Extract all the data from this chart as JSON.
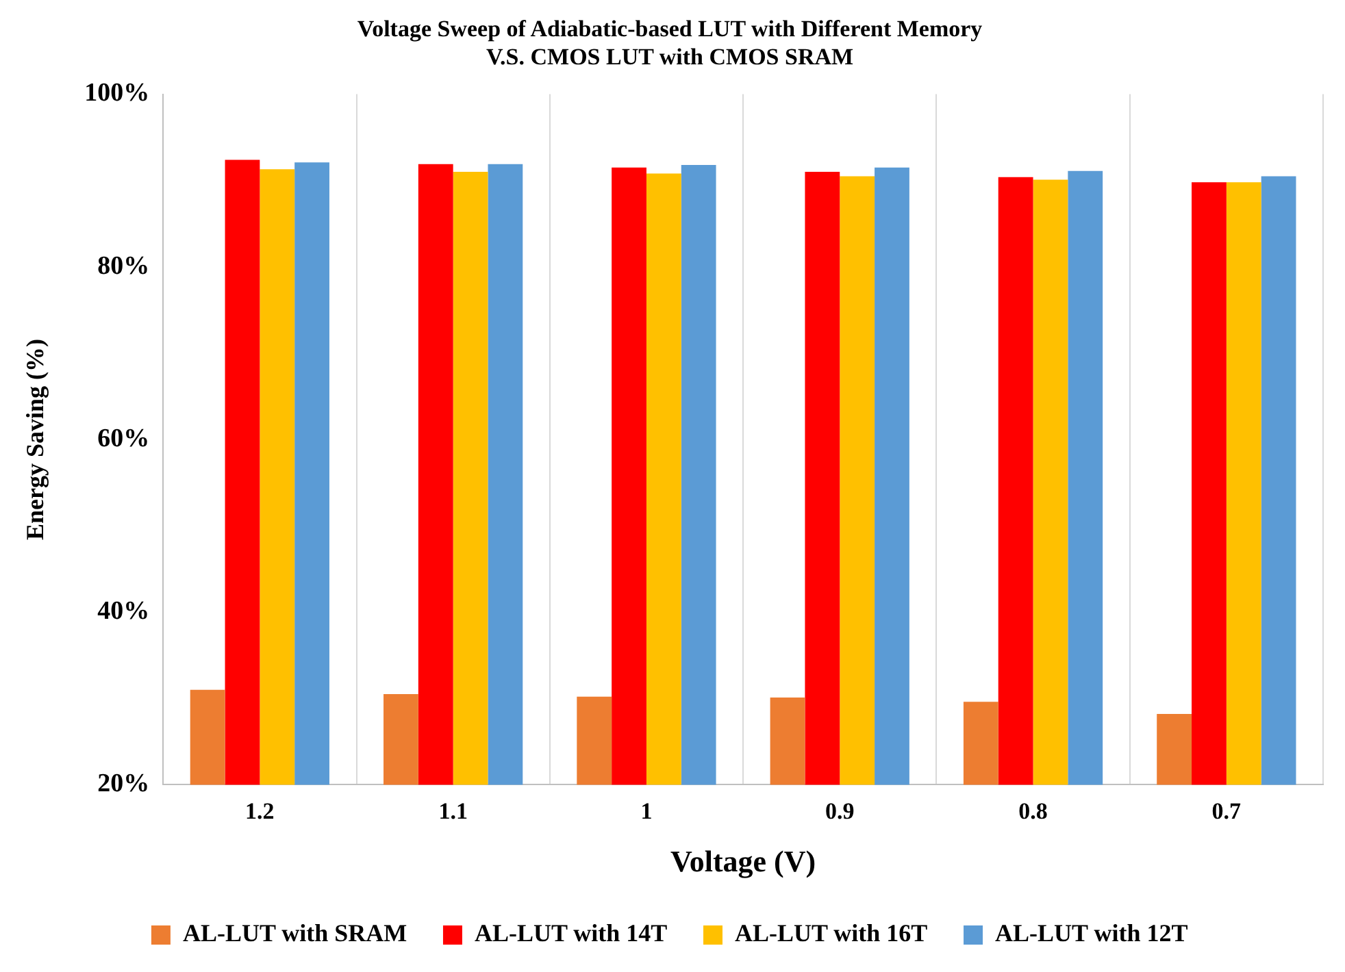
{
  "chart_data": {
    "type": "bar",
    "title": "Voltage Sweep of Adiabatic-based LUT with Different Memory\nV.S. CMOS LUT with CMOS SRAM",
    "xlabel": "Voltage (V)",
    "ylabel": "Energy Saving (%)",
    "categories": [
      "1.2",
      "1.1",
      "1",
      "0.9",
      "0.8",
      "0.7"
    ],
    "series": [
      {
        "name": "AL-LUT with SRAM",
        "color": "#ed7d31",
        "values": [
          31,
          30.5,
          30.2,
          30.1,
          29.6,
          28.2
        ]
      },
      {
        "name": "AL-LUT with 14T",
        "color": "#ff0000",
        "values": [
          92.4,
          91.9,
          91.5,
          91,
          90.4,
          89.8
        ]
      },
      {
        "name": "AL-LUT with 16T",
        "color": "#ffc000",
        "values": [
          91.3,
          91,
          90.8,
          90.5,
          90.1,
          89.8
        ]
      },
      {
        "name": "AL-LUT with 12T",
        "color": "#5b9bd5",
        "values": [
          92.1,
          91.9,
          91.8,
          91.5,
          91.1,
          90.5
        ]
      }
    ],
    "ylim": [
      20,
      100
    ],
    "yticks": [
      {
        "value": 20,
        "label": "20%"
      },
      {
        "value": 40,
        "label": "40%"
      },
      {
        "value": 60,
        "label": "60%"
      },
      {
        "value": 80,
        "label": "80%"
      },
      {
        "value": 100,
        "label": "100%"
      }
    ],
    "grid": "x",
    "legend": "bottom"
  }
}
